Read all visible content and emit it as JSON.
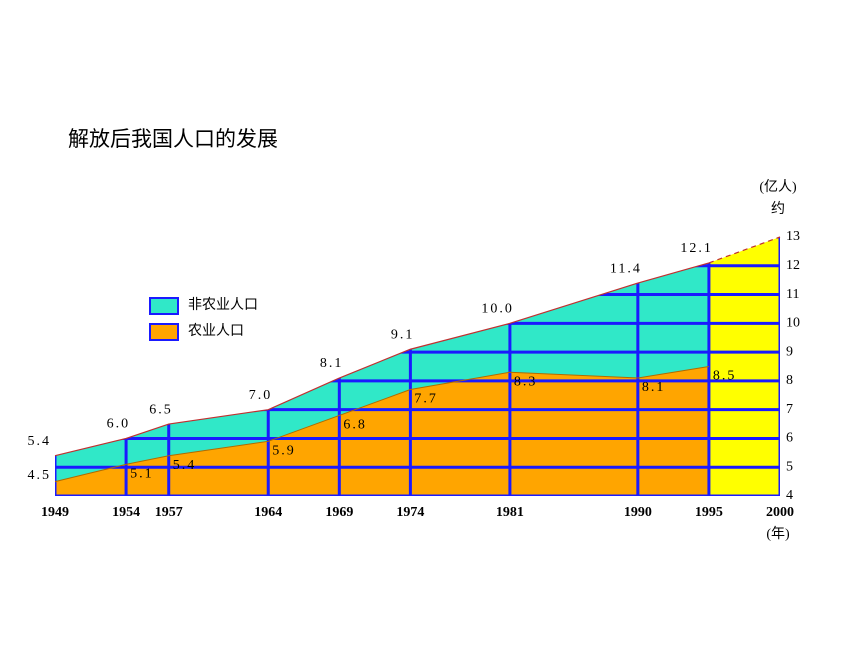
{
  "chart_data": {
    "type": "area",
    "title": "解放后我国人口的发展",
    "y_axis_label": "(亿人)",
    "y_axis_note": "约",
    "x_axis_label": "(年)",
    "x": [
      1949,
      1954,
      1957,
      1964,
      1969,
      1974,
      1981,
      1990,
      1995,
      2000
    ],
    "xlim": [
      1949,
      2000
    ],
    "ylim": [
      4,
      13
    ],
    "yticks": [
      4,
      5,
      6,
      7,
      8,
      9,
      10,
      11,
      12,
      13
    ],
    "series": [
      {
        "name": "非农业人口",
        "color": "#30e8c8",
        "values": [
          5.4,
          6.0,
          6.5,
          7.0,
          8.1,
          9.1,
          10.0,
          11.4,
          12.1,
          13
        ],
        "value_labels": [
          "5.4",
          "6.0",
          "6.5",
          "7.0",
          "8.1",
          "9.1",
          "10.0",
          "11.4",
          "12.1",
          null
        ]
      },
      {
        "name": "农业人口",
        "color": "#ffa500",
        "values": [
          4.5,
          5.1,
          5.4,
          5.9,
          6.8,
          7.7,
          8.3,
          8.1,
          8.5,
          null
        ],
        "value_labels": [
          "4.5",
          "5.1",
          "5.4",
          "5.9",
          "6.8",
          "7.7",
          "8.3",
          "8.1",
          "8.5",
          null
        ]
      }
    ],
    "projection_color": "#ffff00",
    "projection_start_index": 8,
    "line_color": "#c03030",
    "grid": true,
    "grid_color": "#1a1aff",
    "legend": "upper left"
  }
}
